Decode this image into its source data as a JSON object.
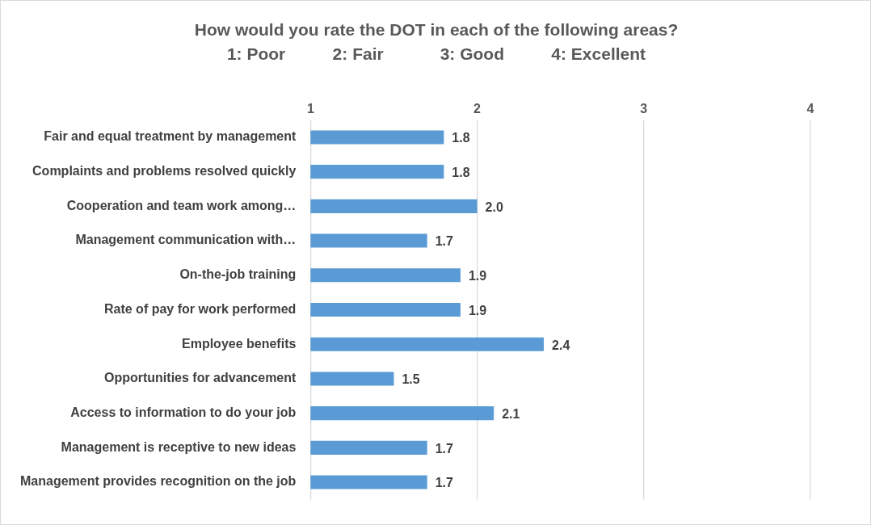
{
  "chart_data": {
    "type": "bar",
    "orientation": "horizontal",
    "title": "How would you rate the DOT in each of the following areas?",
    "subtitle": "1: Poor          2: Fair            3: Good          4: Excellent",
    "categories": [
      "Fair and equal treatment by management",
      "Complaints and problems resolved quickly",
      "Cooperation and team work among…",
      "Management communication with…",
      "On-the-job training",
      "Rate of pay for work performed",
      "Employee benefits",
      "Opportunities for advancement",
      "Access to information to do your job",
      "Management is receptive to new ideas",
      "Management provides recognition on the job"
    ],
    "values": [
      1.8,
      1.8,
      2.0,
      1.7,
      1.9,
      1.9,
      2.4,
      1.5,
      2.1,
      1.7,
      1.7
    ],
    "value_labels": [
      "1.8",
      "1.8",
      "2.0",
      "1.7",
      "1.9",
      "1.9",
      "2.4",
      "1.5",
      "2.1",
      "1.7",
      "1.7"
    ],
    "color": "#5b9bd5",
    "xlim": [
      1,
      4
    ],
    "xticks": [
      1,
      2,
      3,
      4
    ],
    "grid": "x"
  }
}
